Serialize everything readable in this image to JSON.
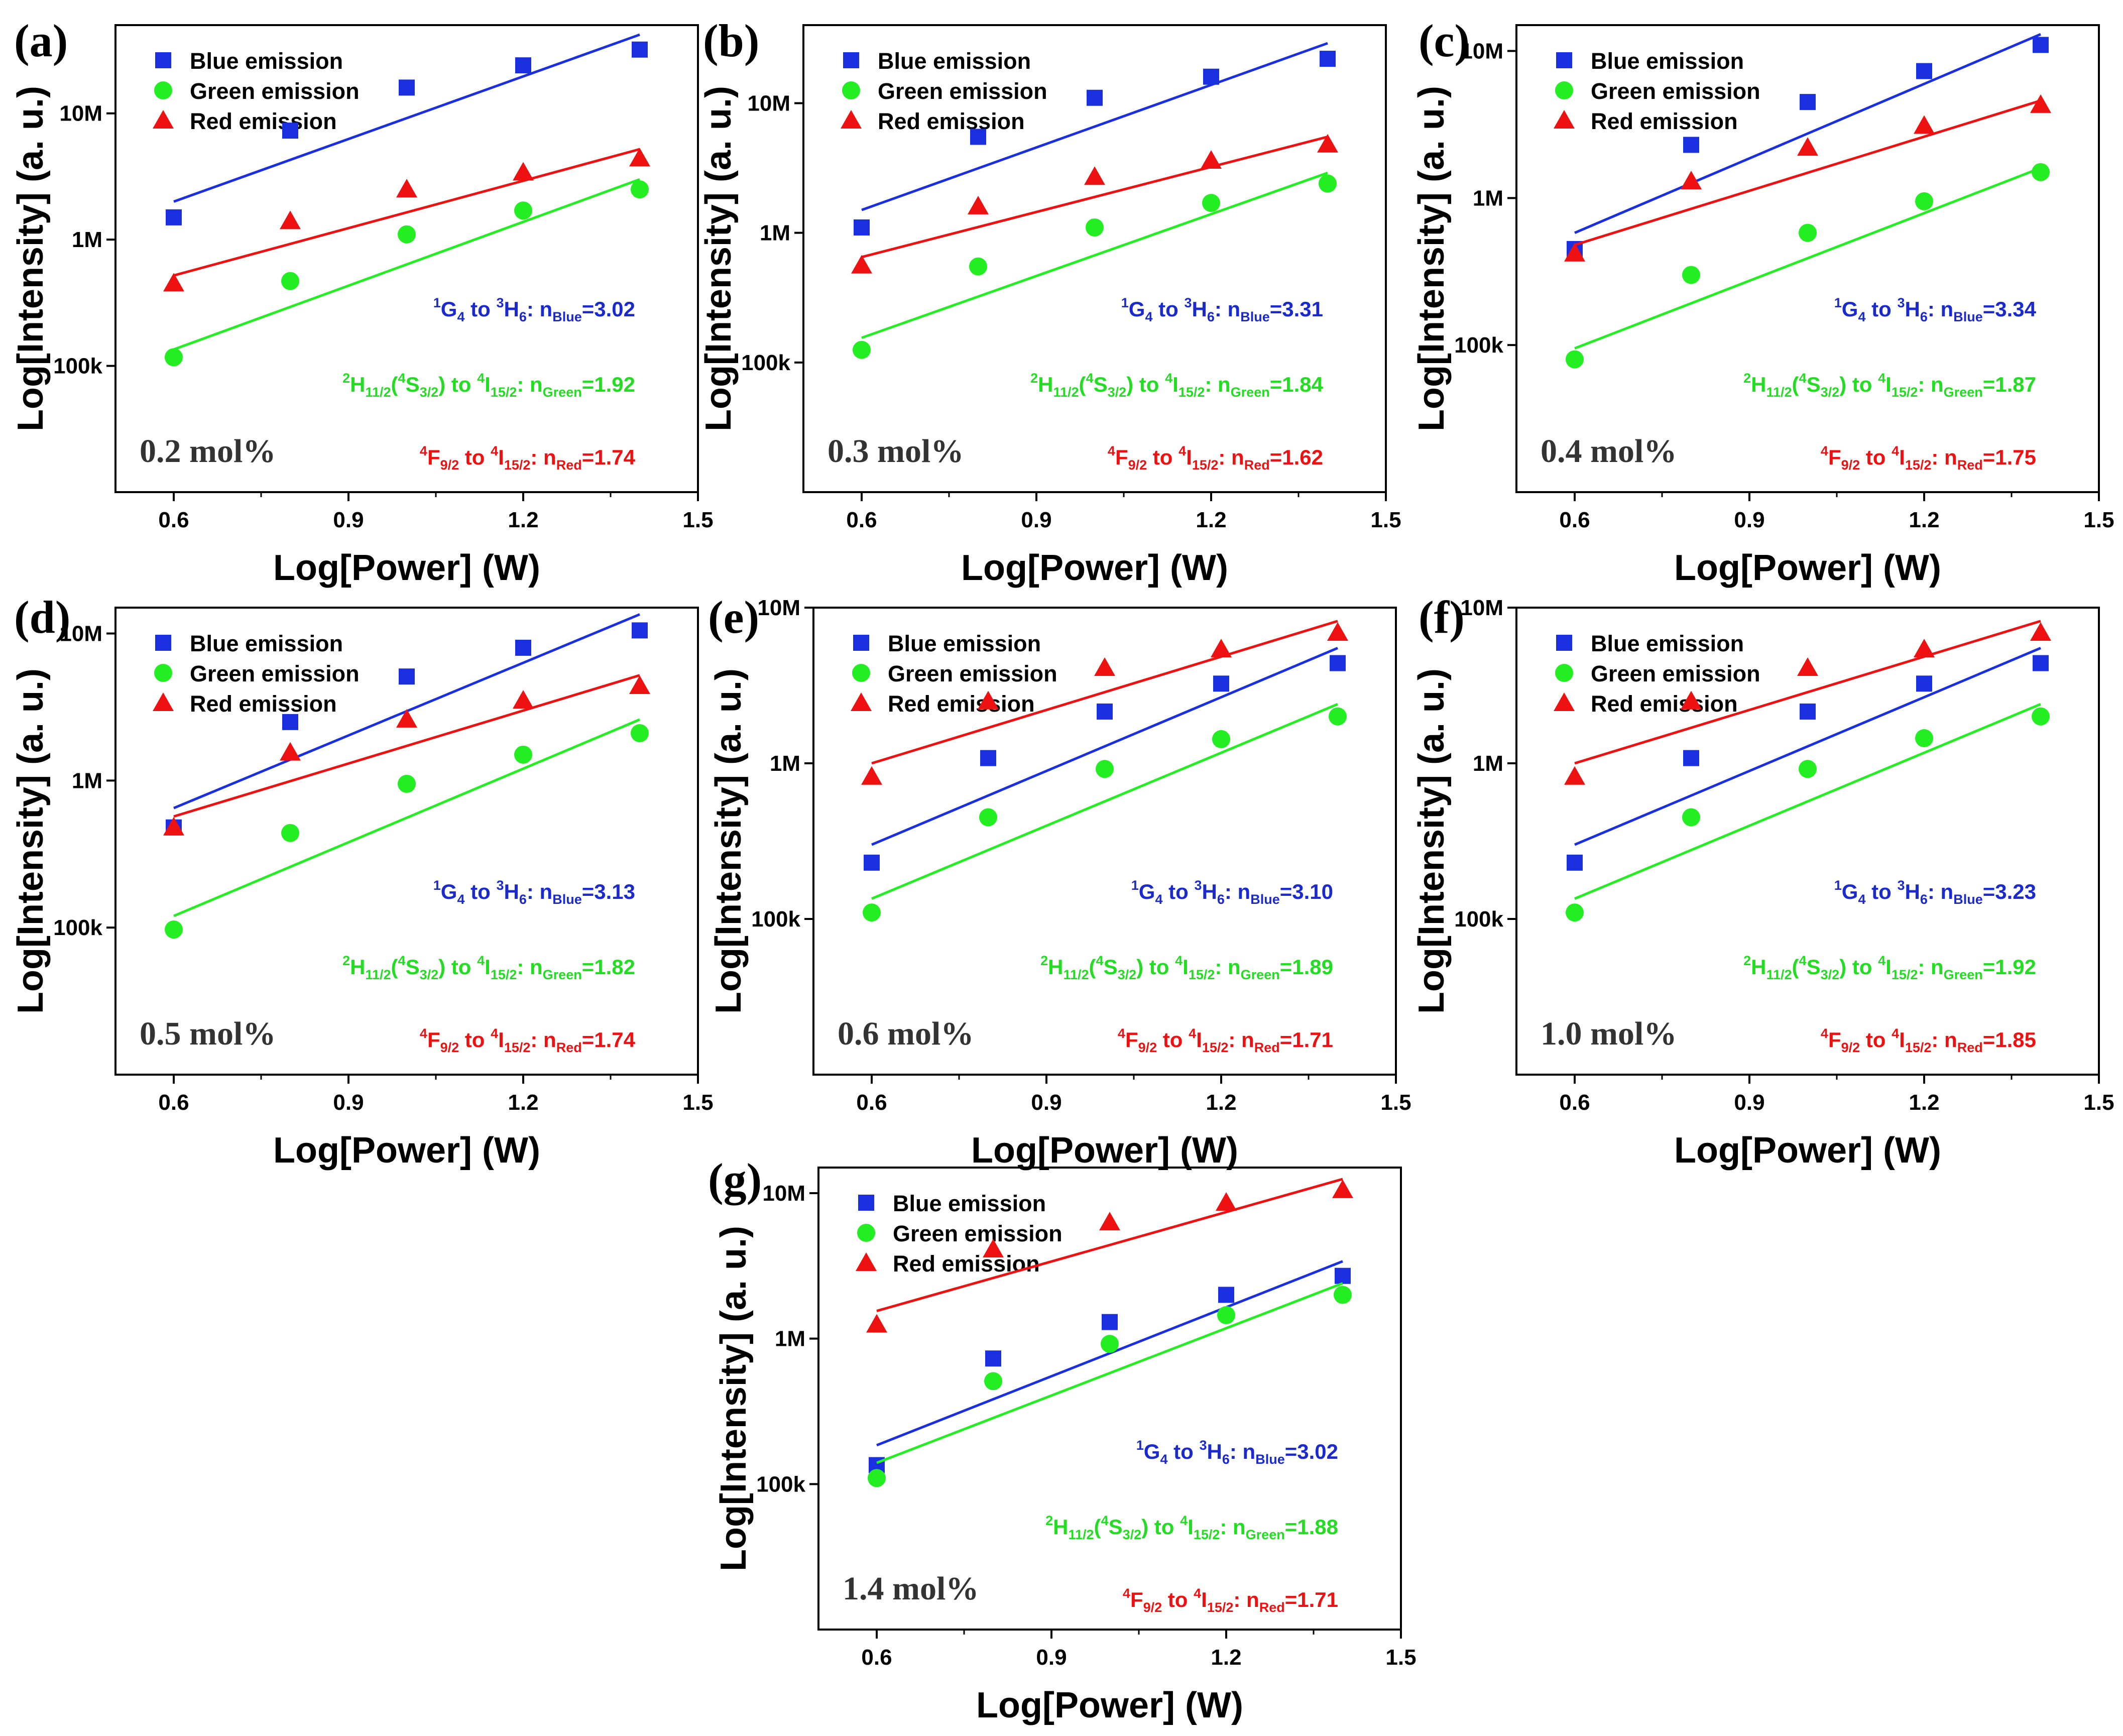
{
  "figure": {
    "x_axis_label": "Log[Power] (W)",
    "y_axis_label": "Log[Intensity] (a. u.)",
    "x_tick_labels": [
      "0.6",
      "0.9",
      "1.2",
      "1.5"
    ],
    "y_tick_labels": [
      "100k",
      "1M",
      "10M"
    ],
    "legend": [
      "Blue emission",
      "Green emission",
      "Red emission"
    ],
    "colors": {
      "blue": "#1a2fe0",
      "green": "#22ee22",
      "red": "#ee1111",
      "blue_text": "#1a2acc",
      "green_text": "#22dd22",
      "red_text": "#ee1111"
    },
    "transitions": {
      "blue": {
        "a": "1",
        "b": "G",
        "c": "4",
        "d": " to ",
        "e": "3",
        "f": "H",
        "g": "6",
        "h": ": n",
        "i": "Blue"
      },
      "green": {
        "a": "2",
        "b": "H",
        "c": "11/2",
        "d": "(",
        "e": "4",
        "f": "S",
        "g": "3/2",
        "h": ") to ",
        "i": "4",
        "j": "I",
        "k": "15/2",
        "l": ": n",
        "m": "Green"
      },
      "red": {
        "a": "4",
        "b": "F",
        "c": "9/2",
        "d": " to ",
        "e": "4",
        "f": "I",
        "g": "15/2",
        "h": ": n",
        "i": "Red"
      }
    }
  },
  "chart_data": [
    {
      "panel": "(a)",
      "type": "scatter",
      "concentration": "0.2 mol%",
      "xlabel": "Log[Power] (W)",
      "ylabel": "Log[Intensity] (a. u.)",
      "xlim": [
        0.5,
        1.5
      ],
      "ylim": [
        10000,
        50000000
      ],
      "y_scale": "log",
      "x": [
        0.6,
        0.8,
        1.0,
        1.2,
        1.4
      ],
      "series": [
        {
          "name": "Blue emission",
          "marker": "square",
          "values": [
            1500000,
            7300000,
            16000000,
            24000000,
            32000000
          ],
          "fit": [
            2000000,
            42000000
          ],
          "slope_label": "=3.02"
        },
        {
          "name": "Green emission",
          "marker": "circle",
          "values": [
            117000,
            470000,
            1100000,
            1700000,
            2500000
          ],
          "fit": [
            135000,
            3000000
          ],
          "slope_label": "=1.92"
        },
        {
          "name": "Red emission",
          "marker": "triangle",
          "values": [
            450000,
            1400000,
            2500000,
            3400000,
            4400000
          ],
          "fit": [
            520000,
            5200000
          ],
          "slope_label": "=1.74"
        }
      ]
    },
    {
      "panel": "(b)",
      "type": "scatter",
      "concentration": "0.3 mol%",
      "xlabel": "Log[Power] (W)",
      "ylabel": "Log[Intensity] (a. u.)",
      "xlim": [
        0.5,
        1.5
      ],
      "ylim": [
        10000,
        40000000
      ],
      "y_scale": "log",
      "x": [
        0.6,
        0.8,
        1.0,
        1.2,
        1.4
      ],
      "series": [
        {
          "name": "Blue emission",
          "marker": "square",
          "values": [
            1100000,
            5500000,
            11000000,
            16000000,
            22000000
          ],
          "fit": [
            1500000,
            29000000
          ],
          "slope_label": "=3.31"
        },
        {
          "name": "Green emission",
          "marker": "circle",
          "values": [
            125000,
            550000,
            1100000,
            1700000,
            2400000
          ],
          "fit": [
            155000,
            2900000
          ],
          "slope_label": "=1.84"
        },
        {
          "name": "Red emission",
          "marker": "triangle",
          "values": [
            560000,
            1600000,
            2700000,
            3600000,
            4800000
          ],
          "fit": [
            650000,
            5500000
          ],
          "slope_label": "=1.62"
        }
      ]
    },
    {
      "panel": "(c)",
      "type": "scatter",
      "concentration": "0.4 mol%",
      "xlabel": "Log[Power] (W)",
      "ylabel": "Log[Intensity] (a. u.)",
      "xlim": [
        0.5,
        1.5
      ],
      "ylim": [
        10000,
        15000000
      ],
      "y_scale": "log",
      "x": [
        0.6,
        0.8,
        1.0,
        1.2,
        1.4
      ],
      "series": [
        {
          "name": "Blue emission",
          "marker": "square",
          "values": [
            450000,
            2300000,
            4500000,
            7300000,
            11000000
          ],
          "fit": [
            580000,
            13000000
          ],
          "slope_label": "=3.34"
        },
        {
          "name": "Green emission",
          "marker": "circle",
          "values": [
            80000,
            300000,
            580000,
            950000,
            1500000
          ],
          "fit": [
            95000,
            1600000
          ],
          "slope_label": "=1.87"
        },
        {
          "name": "Red emission",
          "marker": "triangle",
          "values": [
            420000,
            1300000,
            2200000,
            3100000,
            4300000
          ],
          "fit": [
            480000,
            4600000
          ],
          "slope_label": "=1.75"
        }
      ]
    },
    {
      "panel": "(d)",
      "type": "scatter",
      "concentration": "0.5 mol%",
      "xlabel": "Log[Power] (W)",
      "ylabel": "Log[Intensity] (a. u.)",
      "xlim": [
        0.5,
        1.5
      ],
      "ylim": [
        10000,
        15000000
      ],
      "y_scale": "log",
      "x": [
        0.6,
        0.8,
        1.0,
        1.2,
        1.4
      ],
      "series": [
        {
          "name": "Blue emission",
          "marker": "square",
          "values": [
            480000,
            2500000,
            5100000,
            8000000,
            10500000
          ],
          "fit": [
            650000,
            13500000
          ],
          "slope_label": "=3.13"
        },
        {
          "name": "Green emission",
          "marker": "circle",
          "values": [
            97000,
            440000,
            950000,
            1500000,
            2100000
          ],
          "fit": [
            120000,
            2600000
          ],
          "slope_label": "=1.82"
        },
        {
          "name": "Red emission",
          "marker": "triangle",
          "values": [
            480000,
            1550000,
            2600000,
            3500000,
            4400000
          ],
          "fit": [
            570000,
            5200000
          ],
          "slope_label": "=1.74"
        }
      ]
    },
    {
      "panel": "(e)",
      "type": "scatter",
      "concentration": "0.6 mol%",
      "xlabel": "Log[Power] (W)",
      "ylabel": "Log[Intensity] (a. u.)",
      "xlim": [
        0.5,
        1.5
      ],
      "ylim": [
        10000,
        10000000
      ],
      "y_scale": "log",
      "x": [
        0.6,
        0.8,
        1.0,
        1.2,
        1.4
      ],
      "series": [
        {
          "name": "Blue emission",
          "marker": "square",
          "values": [
            230000,
            1080000,
            2150000,
            3250000,
            4400000
          ],
          "fit": [
            300000,
            5500000
          ],
          "slope_label": "=3.10"
        },
        {
          "name": "Green emission",
          "marker": "circle",
          "values": [
            110000,
            450000,
            920000,
            1430000,
            2000000
          ],
          "fit": [
            135000,
            2400000
          ],
          "slope_label": "=1.89"
        },
        {
          "name": "Red emission",
          "marker": "triangle",
          "values": [
            820000,
            2500000,
            4100000,
            5400000,
            6900000
          ],
          "fit": [
            1000000,
            8200000
          ],
          "slope_label": "=1.71"
        }
      ]
    },
    {
      "panel": "(f)",
      "type": "scatter",
      "concentration": "1.0 mol%",
      "xlabel": "Log[Power] (W)",
      "ylabel": "Log[Intensity] (a. u.)",
      "xlim": [
        0.5,
        1.5
      ],
      "ylim": [
        10000,
        10000000
      ],
      "y_scale": "log",
      "x": [
        0.6,
        0.8,
        1.0,
        1.2,
        1.4
      ],
      "series": [
        {
          "name": "Blue emission",
          "marker": "square",
          "values": [
            230000,
            1080000,
            2150000,
            3250000,
            4400000
          ],
          "fit": [
            300000,
            5500000
          ],
          "slope_label": "=3.23"
        },
        {
          "name": "Green emission",
          "marker": "circle",
          "values": [
            110000,
            450000,
            920000,
            1450000,
            2000000
          ],
          "fit": [
            135000,
            2400000
          ],
          "slope_label": "=1.92"
        },
        {
          "name": "Red emission",
          "marker": "triangle",
          "values": [
            820000,
            2500000,
            4100000,
            5400000,
            6900000
          ],
          "fit": [
            1000000,
            8200000
          ],
          "slope_label": "=1.85"
        }
      ]
    },
    {
      "panel": "(g)",
      "type": "scatter",
      "concentration": "1.4 mol%",
      "xlabel": "Log[Power] (W)",
      "ylabel": "Log[Intensity] (a. u.)",
      "xlim": [
        0.5,
        1.5
      ],
      "ylim": [
        10000,
        15000000
      ],
      "y_scale": "log",
      "x": [
        0.6,
        0.8,
        1.0,
        1.2,
        1.4
      ],
      "series": [
        {
          "name": "Blue emission",
          "marker": "square",
          "values": [
            135000,
            730000,
            1300000,
            2000000,
            2700000
          ],
          "fit": [
            185000,
            3400000
          ],
          "slope_label": "=3.02"
        },
        {
          "name": "Green emission",
          "marker": "circle",
          "values": [
            110000,
            510000,
            920000,
            1450000,
            2000000
          ],
          "fit": [
            140000,
            2400000
          ],
          "slope_label": "=1.88"
        },
        {
          "name": "Red emission",
          "marker": "triangle",
          "values": [
            1250000,
            4100000,
            6300000,
            8600000,
            10500000
          ],
          "fit": [
            1550000,
            12500000
          ],
          "slope_label": "=1.71"
        }
      ]
    }
  ]
}
